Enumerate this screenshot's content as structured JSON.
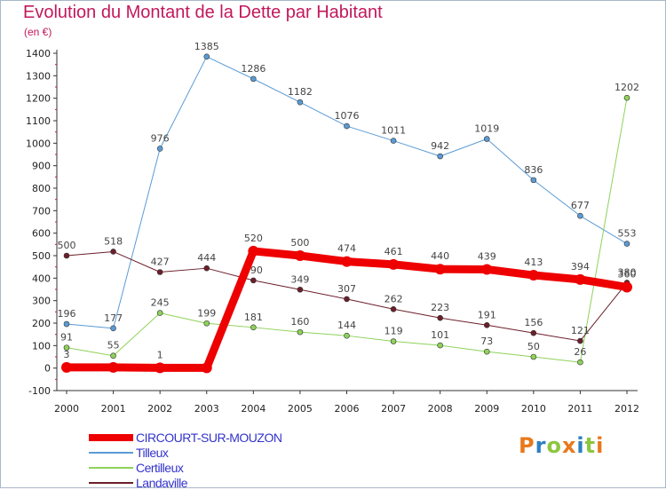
{
  "title": "Evolution du Montant de la Dette par Habitant",
  "subtitle": "(en €)",
  "logo": {
    "text": "Proxiti",
    "colors": [
      "#e8791c",
      "#2d7fc1",
      "#8dc63f",
      "#e8791c",
      "#2d7fc1",
      "#8dc63f",
      "#e8791c"
    ]
  },
  "chart_data": {
    "type": "line",
    "x": [
      "2000",
      "2001",
      "2002",
      "2003",
      "2004",
      "2005",
      "2006",
      "2007",
      "2008",
      "2009",
      "2010",
      "2011",
      "2012"
    ],
    "ylim": [
      -100,
      1400
    ],
    "yticks": [
      -100,
      0,
      100,
      200,
      300,
      400,
      500,
      600,
      700,
      800,
      900,
      1000,
      1100,
      1200,
      1300,
      1400
    ],
    "grid": false,
    "legend_position": "bottom-left",
    "series": [
      {
        "name": "CIRCOURT-SUR-MOUZON",
        "color": "#ee0000",
        "width": 9,
        "label_pos": "above",
        "values": [
          3,
          3,
          1,
          1,
          520,
          500,
          474,
          461,
          440,
          439,
          413,
          394,
          360
        ],
        "labels": [
          "3",
          "",
          "1",
          "",
          "520",
          "500",
          "474",
          "461",
          "440",
          "439",
          "413",
          "394",
          "360"
        ]
      },
      {
        "name": "Tilleux",
        "color": "#5b9bd5",
        "width": 1,
        "label_pos": "above",
        "values": [
          196,
          177,
          976,
          1385,
          1286,
          1182,
          1076,
          1011,
          942,
          1019,
          836,
          677,
          553
        ],
        "labels": [
          "196",
          "177",
          "976",
          "1385",
          "1286",
          "1182",
          "1076",
          "1011",
          "942",
          "1019",
          "836",
          "677",
          "553"
        ]
      },
      {
        "name": "Certilleux",
        "color": "#8ed25a",
        "width": 1,
        "label_pos": "above",
        "values": [
          91,
          55,
          245,
          199,
          181,
          160,
          144,
          119,
          101,
          73,
          50,
          26,
          1202
        ],
        "labels": [
          "91",
          "55",
          "245",
          "199",
          "181",
          "160",
          "144",
          "119",
          "101",
          "73",
          "50",
          "26",
          "1202"
        ]
      },
      {
        "name": "Landaville",
        "color": "#6b1f2a",
        "width": 1,
        "label_pos": "above",
        "values": [
          500,
          518,
          427,
          444,
          390,
          349,
          307,
          262,
          223,
          191,
          156,
          121,
          380
        ],
        "labels": [
          "500",
          "518",
          "427",
          "444",
          "390",
          "349",
          "307",
          "262",
          "223",
          "191",
          "156",
          "121",
          "380"
        ]
      }
    ]
  }
}
